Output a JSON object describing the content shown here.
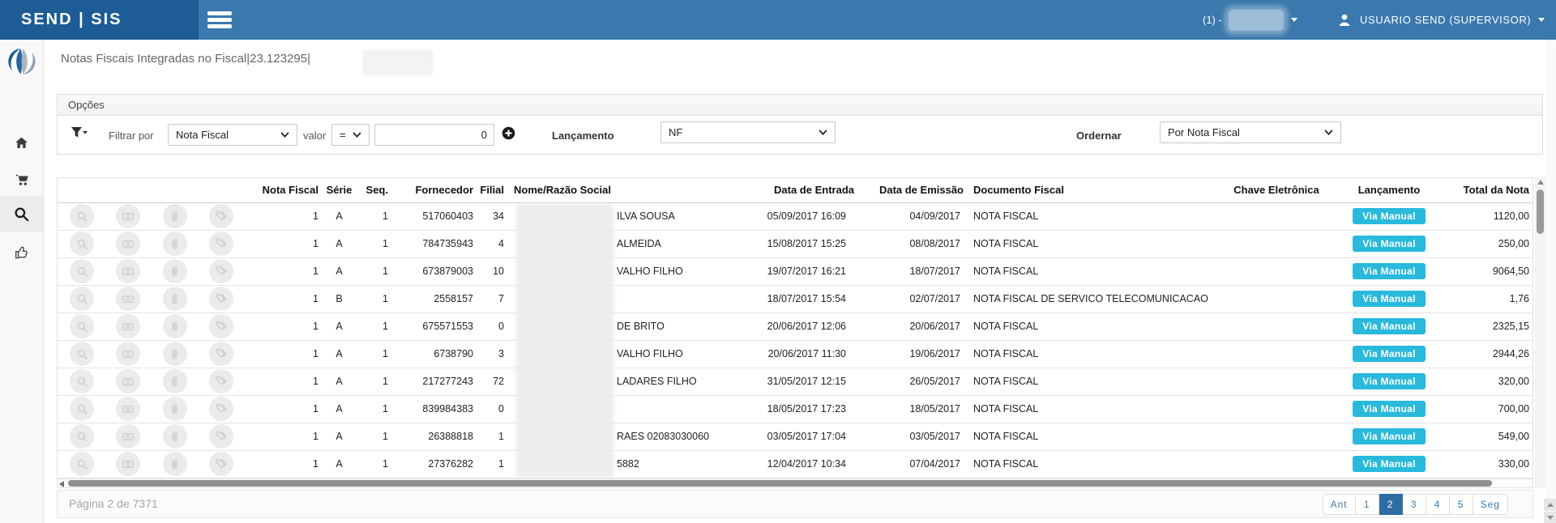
{
  "topbar": {
    "brand": "SEND | SIS",
    "company_prefix": "(1) -",
    "user_name": "USUARIO SEND (SUPERVISOR)"
  },
  "page": {
    "title": "Notas Fiscais Integradas no Fiscal|23.123295|"
  },
  "sidebar": {
    "icons": [
      "home-icon",
      "cart-icon",
      "search-icon",
      "thumbs-up-icon"
    ],
    "active_icon": "search-icon"
  },
  "options": {
    "header": "Opções",
    "filtrar_por_label": "Filtrar por",
    "filter_field_value": "Nota Fiscal",
    "valor_label": "valor",
    "operator_value": "=",
    "value": "0",
    "lancamento_label": "Lançamento",
    "lancamento_value": "NF",
    "ordernar_label": "Ordernar",
    "ordernar_value": "Por Nota Fiscal"
  },
  "table": {
    "columns": [
      "Nota Fiscal",
      "Série",
      "Seq.",
      "Fornecedor",
      "Filial",
      "Nome/Razão Social",
      "Data de Entrada",
      "Data de Emissão",
      "Documento Fiscal",
      "Chave Eletrônica",
      "Lançamento",
      "Total da Nota"
    ],
    "row_action_icons": [
      "search-icon",
      "money-icon",
      "paperclip-icon",
      "tag-icon"
    ],
    "rows": [
      {
        "nota_fiscal": "1",
        "serie": "A",
        "seq": "1",
        "fornecedor": "517060403",
        "filial": "34",
        "nome": "ILVA SOUSA",
        "data_entrada": "05/09/2017 16:09",
        "data_emissao": "04/09/2017",
        "documento_fiscal": "NOTA FISCAL",
        "chave": "",
        "lancamento": "Via Manual",
        "total": "1120,00"
      },
      {
        "nota_fiscal": "1",
        "serie": "A",
        "seq": "1",
        "fornecedor": "784735943",
        "filial": "4",
        "nome": "ALMEIDA",
        "data_entrada": "15/08/2017 15:25",
        "data_emissao": "08/08/2017",
        "documento_fiscal": "NOTA FISCAL",
        "chave": "",
        "lancamento": "Via Manual",
        "total": "250,00"
      },
      {
        "nota_fiscal": "1",
        "serie": "A",
        "seq": "1",
        "fornecedor": "673879003",
        "filial": "10",
        "nome": "VALHO FILHO",
        "data_entrada": "19/07/2017 16:21",
        "data_emissao": "18/07/2017",
        "documento_fiscal": "NOTA FISCAL",
        "chave": "",
        "lancamento": "Via Manual",
        "total": "9064,50"
      },
      {
        "nota_fiscal": "1",
        "serie": "B",
        "seq": "1",
        "fornecedor": "2558157",
        "filial": "7",
        "nome": "",
        "data_entrada": "18/07/2017 15:54",
        "data_emissao": "02/07/2017",
        "documento_fiscal": "NOTA FISCAL DE SERVICO TELECOMUNICACAO",
        "chave": "",
        "lancamento": "Via Manual",
        "total": "1,76"
      },
      {
        "nota_fiscal": "1",
        "serie": "A",
        "seq": "1",
        "fornecedor": "675571553",
        "filial": "0",
        "nome": "DE BRITO",
        "data_entrada": "20/06/2017 12:06",
        "data_emissao": "20/06/2017",
        "documento_fiscal": "NOTA FISCAL",
        "chave": "",
        "lancamento": "Via Manual",
        "total": "2325,15"
      },
      {
        "nota_fiscal": "1",
        "serie": "A",
        "seq": "1",
        "fornecedor": "6738790",
        "filial": "3",
        "nome": "VALHO FILHO",
        "data_entrada": "20/06/2017 11:30",
        "data_emissao": "19/06/2017",
        "documento_fiscal": "NOTA FISCAL",
        "chave": "",
        "lancamento": "Via Manual",
        "total": "2944,26"
      },
      {
        "nota_fiscal": "1",
        "serie": "A",
        "seq": "1",
        "fornecedor": "217277243",
        "filial": "72",
        "nome": "LADARES FILHO",
        "data_entrada": "31/05/2017 12:15",
        "data_emissao": "26/05/2017",
        "documento_fiscal": "NOTA FISCAL",
        "chave": "",
        "lancamento": "Via Manual",
        "total": "320,00"
      },
      {
        "nota_fiscal": "1",
        "serie": "A",
        "seq": "1",
        "fornecedor": "839984383",
        "filial": "0",
        "nome": "",
        "data_entrada": "18/05/2017 17:23",
        "data_emissao": "18/05/2017",
        "documento_fiscal": "NOTA FISCAL",
        "chave": "",
        "lancamento": "Via Manual",
        "total": "700,00"
      },
      {
        "nota_fiscal": "1",
        "serie": "A",
        "seq": "1",
        "fornecedor": "26388818",
        "filial": "1",
        "nome": "RAES 02083030060",
        "data_entrada": "03/05/2017 17:04",
        "data_emissao": "03/05/2017",
        "documento_fiscal": "NOTA FISCAL",
        "chave": "",
        "lancamento": "Via Manual",
        "total": "549,00"
      },
      {
        "nota_fiscal": "1",
        "serie": "A",
        "seq": "1",
        "fornecedor": "27376282",
        "filial": "1",
        "nome": "5882",
        "data_entrada": "12/04/2017 10:34",
        "data_emissao": "07/04/2017",
        "documento_fiscal": "NOTA FISCAL",
        "chave": "",
        "lancamento": "Via Manual",
        "total": "330,00"
      }
    ]
  },
  "footer": {
    "page_info": "Página 2 de 7371",
    "pagination": [
      "Ant",
      "1",
      "2",
      "3",
      "4",
      "5",
      "Seg"
    ],
    "active_page": "2"
  },
  "colors": {
    "topbar_blue": "#3a78ad",
    "brand_dark_blue": "#1d5c95",
    "via_manual_cyan": "#28b9dc",
    "pagination_blue": "#3878ad",
    "pagination_active_bg": "#2e6da4"
  }
}
